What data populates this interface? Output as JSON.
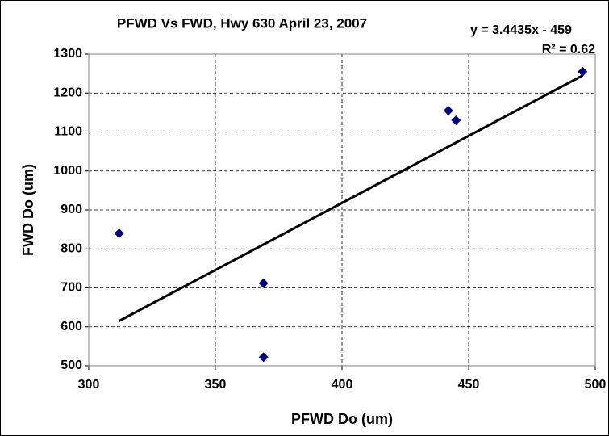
{
  "chart_data": {
    "type": "scatter",
    "title": "PFWD Vs FWD, Hwy 630 April 23, 2007",
    "x_label": "PFWD Do (um)",
    "y_label": "FWD Do (um)",
    "annotations": [
      "y = 3.4435x - 459",
      "R² = 0.62"
    ],
    "series": [
      {
        "name": "FWD Do",
        "color": "#000080",
        "x": [
          312,
          369,
          369,
          442,
          445,
          495
        ],
        "values": [
          840,
          712,
          522,
          1155,
          1130,
          1255
        ]
      },
      {
        "name": "Linear",
        "color": "#000000",
        "x": [
          312,
          495
        ],
        "values": [
          615,
          1245
        ]
      }
    ],
    "xlim": [
      300,
      500
    ],
    "xticks": [
      300,
      350,
      400,
      450,
      500
    ],
    "ylim": [
      500,
      1300
    ],
    "yticks": [
      500,
      600,
      700,
      800,
      900,
      1000,
      1100,
      1200,
      1300
    ],
    "grid": true
  }
}
